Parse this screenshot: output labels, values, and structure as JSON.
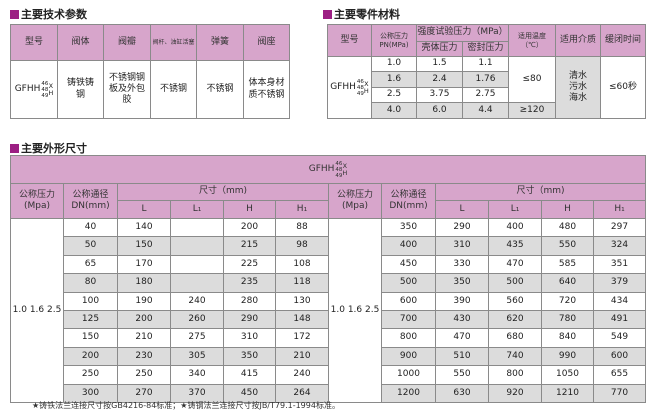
{
  "model": {
    "prefix": "GFHH",
    "sub": [
      "46",
      "48",
      "49"
    ],
    "suffix": [
      "X",
      "H"
    ]
  },
  "tech": {
    "title": "主要技术参数",
    "headers": [
      "型号",
      "阀体",
      "阀瓣",
      "阀杆、油缸活塞",
      "弹簧",
      "阀座"
    ],
    "values": [
      "铸铁铸钢",
      "不锈钢钢板及外包胶",
      "不锈钢",
      "不锈钢",
      "体本身材质不锈钢"
    ]
  },
  "parts": {
    "title": "主要零件材料",
    "headers": {
      "model": "型号",
      "pn": "公称压力PN(MPa)",
      "test": "强度试验压力（MPa）",
      "shell": "壳体压力",
      "seal": "密封压力",
      "temp": "适用温度（℃）",
      "medium": "适用介质",
      "close": "缓闭时间"
    },
    "rows": [
      [
        "1.0",
        "1.5",
        "1.1"
      ],
      [
        "1.6",
        "2.4",
        "1.76"
      ],
      [
        "2.5",
        "3.75",
        "2.75"
      ],
      [
        "4.0",
        "6.0",
        "4.4"
      ]
    ],
    "temp": [
      "≤80",
      "≥120"
    ],
    "medium": "清水 污水 海水",
    "close": "≤60秒"
  },
  "dims": {
    "title": "主要外形尺寸",
    "headers": {
      "pn": "公称压力(Mpa)",
      "dn": "公称通径DN(mm)",
      "size": "尺寸（mm)",
      "L": "L",
      "L1": "L₁",
      "H": "H",
      "H1": "H₁"
    },
    "pressures": "1.0 1.6 2.5",
    "left": [
      [
        "40",
        "140",
        "",
        "200",
        "88"
      ],
      [
        "50",
        "150",
        "",
        "215",
        "98"
      ],
      [
        "65",
        "170",
        "",
        "225",
        "108"
      ],
      [
        "80",
        "180",
        "",
        "235",
        "118"
      ],
      [
        "100",
        "190",
        "240",
        "280",
        "130"
      ],
      [
        "125",
        "200",
        "260",
        "290",
        "148"
      ],
      [
        "150",
        "210",
        "275",
        "310",
        "172"
      ],
      [
        "200",
        "230",
        "305",
        "350",
        "210"
      ],
      [
        "250",
        "250",
        "340",
        "415",
        "240"
      ],
      [
        "300",
        "270",
        "370",
        "450",
        "264"
      ]
    ],
    "right": [
      [
        "350",
        "290",
        "400",
        "480",
        "297"
      ],
      [
        "400",
        "310",
        "435",
        "550",
        "324"
      ],
      [
        "450",
        "330",
        "470",
        "585",
        "351"
      ],
      [
        "500",
        "350",
        "500",
        "640",
        "379"
      ],
      [
        "600",
        "390",
        "560",
        "720",
        "434"
      ],
      [
        "700",
        "430",
        "620",
        "780",
        "491"
      ],
      [
        "800",
        "470",
        "680",
        "840",
        "549"
      ],
      [
        "900",
        "510",
        "740",
        "990",
        "600"
      ],
      [
        "1000",
        "550",
        "800",
        "1050",
        "655"
      ],
      [
        "1200",
        "630",
        "920",
        "1210",
        "770"
      ]
    ]
  },
  "footnote": "★铸铁法兰连接尺寸按GB4216-84标准；★铸钢法兰连接尺寸按JB/T79.1-1994标准。",
  "colors": {
    "accent": "#9c1f83",
    "header": "#d7a5cb",
    "stripe": "#dcdcdc"
  }
}
